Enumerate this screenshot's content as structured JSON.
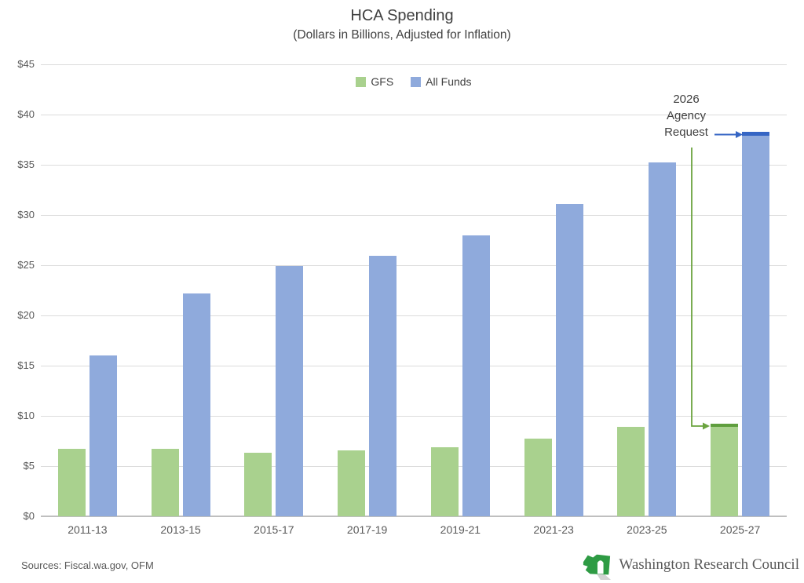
{
  "header": {
    "title": "HCA Spending",
    "subtitle": "(Dollars in Billions, Adjusted for Inflation)"
  },
  "legend": {
    "items": [
      {
        "label": "GFS",
        "color": "#A9D18E"
      },
      {
        "label": "All Funds",
        "color": "#8FAADC"
      }
    ]
  },
  "chart_data": {
    "type": "bar",
    "title": "HCA Spending",
    "subtitle": "(Dollars in Billions, Adjusted for Inflation)",
    "categories": [
      "2011-13",
      "2013-15",
      "2015-17",
      "2017-19",
      "2019-21",
      "2021-23",
      "2023-25",
      "2025-27"
    ],
    "series": [
      {
        "name": "GFS",
        "color": "#A9D18E",
        "values": [
          6.7,
          6.7,
          6.3,
          6.6,
          6.9,
          7.7,
          8.9,
          9.1
        ]
      },
      {
        "name": "All Funds",
        "color": "#8FAADC",
        "values": [
          16.0,
          22.2,
          24.9,
          25.9,
          28.0,
          31.1,
          35.2,
          38.2
        ]
      }
    ],
    "xlabel": "",
    "ylabel": "",
    "ylim": [
      0,
      45
    ],
    "ytick_interval": 5,
    "ytick_labels": [
      "$0",
      "$5",
      "$10",
      "$15",
      "$20",
      "$25",
      "$30",
      "$35",
      "$40",
      "$45"
    ],
    "grid": true,
    "legend_position": "top-center",
    "annotation": {
      "label_lines": [
        "2026",
        "Agency",
        "Request"
      ],
      "all_funds_request_value": 38.2,
      "gfs_request_value": 9.1,
      "blue_marker_color": "#3565C4",
      "green_marker_color": "#5F9E3E",
      "green_arrow_color": "#6BA43F"
    }
  },
  "footer": {
    "sources": "Sources: Fiscal.wa.gov, OFM",
    "logo_name": "washington-state-column-logo",
    "org_name": "Washington Research Council"
  },
  "colors": {
    "gridline": "#DCDCDC",
    "axis_line": "#BFBFBF",
    "title_text": "#404040",
    "axis_text": "#595959",
    "logo_green": "#2E9B44",
    "logo_shadow": "#AFAFAF"
  }
}
